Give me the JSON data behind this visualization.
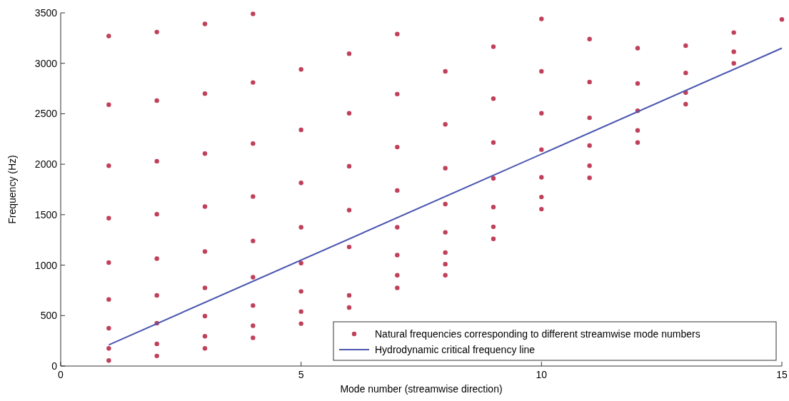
{
  "chart_data": {
    "type": "scatter",
    "xlabel": "Mode number (streamwise direction)",
    "ylabel": "Frequency (Hz)",
    "xlim": [
      0,
      15
    ],
    "ylim": [
      0,
      3500
    ],
    "xticks": [
      0,
      5,
      10,
      15
    ],
    "yticks": [
      0,
      500,
      1000,
      1500,
      2000,
      2500,
      3000,
      3500
    ],
    "grid": false,
    "legend": "bottom right",
    "series": [
      {
        "name": "Natural frequencies corresponding to different streamwise mode numbers",
        "marker": "circle",
        "color": "#c0405a",
        "x": [
          1,
          1,
          1,
          1,
          1,
          1,
          1,
          1,
          1,
          2,
          2,
          2,
          2,
          2,
          2,
          2,
          2,
          2,
          3,
          3,
          3,
          3,
          3,
          3,
          3,
          3,
          3,
          4,
          4,
          4,
          4,
          4,
          4,
          4,
          4,
          4,
          5,
          5,
          5,
          5,
          5,
          5,
          5,
          5,
          6,
          6,
          6,
          6,
          6,
          6,
          6,
          7,
          7,
          7,
          7,
          7,
          7,
          7,
          7,
          8,
          8,
          8,
          8,
          8,
          8,
          8,
          8,
          9,
          9,
          9,
          9,
          9,
          9,
          9,
          10,
          10,
          10,
          10,
          10,
          10,
          10,
          11,
          11,
          11,
          11,
          11,
          11,
          12,
          12,
          12,
          12,
          12,
          13,
          13,
          13,
          13,
          14,
          14,
          14,
          15
        ],
        "values": [
          3270,
          2590,
          1985,
          1465,
          1025,
          660,
          375,
          175,
          55,
          3310,
          2630,
          2030,
          1505,
          1065,
          700,
          425,
          220,
          100,
          3390,
          2700,
          2105,
          1580,
          1135,
          775,
          495,
          295,
          175,
          3490,
          2810,
          2205,
          1680,
          1240,
          880,
          600,
          400,
          280,
          2940,
          2340,
          1815,
          1375,
          1020,
          740,
          540,
          420,
          3095,
          2505,
          1980,
          1545,
          1180,
          700,
          580,
          3290,
          2695,
          2170,
          1740,
          1375,
          1100,
          900,
          775,
          2920,
          2395,
          1960,
          1605,
          1325,
          1125,
          1010,
          900,
          3165,
          2650,
          2215,
          1860,
          1575,
          1380,
          1260,
          3440,
          2920,
          2505,
          2145,
          1870,
          1675,
          1555,
          3240,
          2815,
          2460,
          2185,
          1985,
          1865,
          3150,
          2800,
          2530,
          2335,
          2215,
          3175,
          2905,
          2710,
          2595,
          3305,
          3115,
          3000,
          3435
        ]
      },
      {
        "name": "Hydrodynamic critical frequency line",
        "type": "line",
        "color": "#4a56b0",
        "line_style": "solid",
        "x": [
          1,
          15
        ],
        "values": [
          210,
          3150
        ]
      }
    ]
  }
}
